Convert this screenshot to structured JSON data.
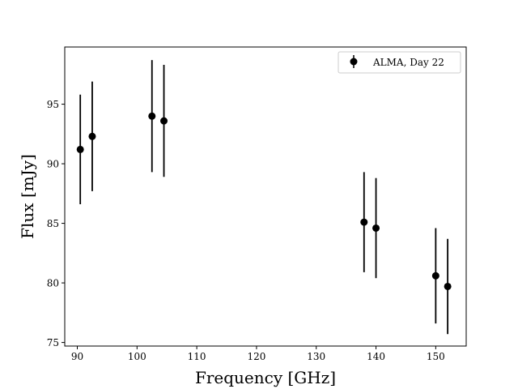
{
  "chart_data": {
    "type": "scatter",
    "title": "",
    "xlabel": "Frequency [GHz]",
    "ylabel": "Flux [mJy]",
    "xlim": [
      87.9,
      155.1
    ],
    "ylim": [
      74.7,
      99.8
    ],
    "xticks": [
      90,
      100,
      110,
      120,
      130,
      140,
      150
    ],
    "yticks": [
      75,
      80,
      85,
      90,
      95
    ],
    "grid": false,
    "legend": {
      "placement": "top-right"
    },
    "series": [
      {
        "name": "ALMA, Day 22",
        "color": "#000000",
        "marker": "circle",
        "points": [
          {
            "x": 90.5,
            "y": 91.2,
            "err": 4.6
          },
          {
            "x": 92.5,
            "y": 92.3,
            "err": 4.6
          },
          {
            "x": 102.5,
            "y": 94.0,
            "err": 4.7
          },
          {
            "x": 104.5,
            "y": 93.6,
            "err": 4.7
          },
          {
            "x": 138.0,
            "y": 85.1,
            "err": 4.2
          },
          {
            "x": 140.0,
            "y": 84.6,
            "err": 4.2
          },
          {
            "x": 150.0,
            "y": 80.6,
            "err": 4.0
          },
          {
            "x": 152.0,
            "y": 79.7,
            "err": 4.0
          }
        ]
      }
    ]
  }
}
